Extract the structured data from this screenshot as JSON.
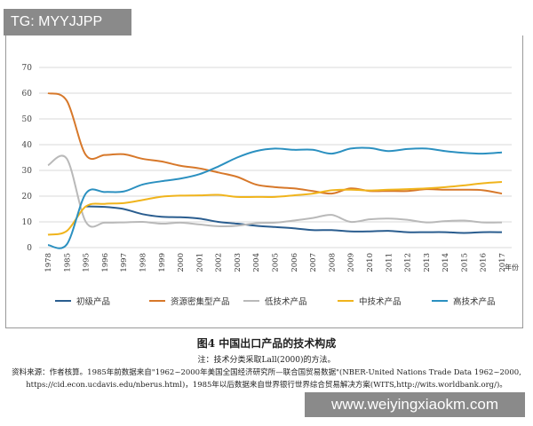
{
  "watermark_top": "TG: MYYJJPP",
  "watermark_bottom": "www.weiyingxiaokm.com",
  "caption": {
    "title": "图4  中国出口产品的技术构成",
    "note": "注：技术分类采取Lall(2000)的方法。",
    "source_line1": "资料来源：作者核算。1985年前数据来自\"1962~2000年美国全国经济研究所—联合国贸易数据\"(NBER-United Nations Trade Data 1962~2000,",
    "source_line2": "https://cid.econ.ucdavis.edu/nberus.html)，1985年以后数据来自世界银行世界综合贸易解决方案(WITS,http://wits.worldbank.org/)。"
  },
  "chart_data": {
    "type": "line",
    "title": "",
    "xlabel": "年份",
    "ylabel": "",
    "ylim": [
      0,
      70
    ],
    "yticks": [
      0,
      10,
      20,
      30,
      40,
      50,
      60,
      70
    ],
    "grid": true,
    "legend": "bottom",
    "categories": [
      "1978",
      "1985",
      "1995",
      "1996",
      "1997",
      "1998",
      "1999",
      "2000",
      "2001",
      "2002",
      "2003",
      "2004",
      "2005",
      "2006",
      "2007",
      "2008",
      "2009",
      "2010",
      "2011",
      "2012",
      "2013",
      "2014",
      "2015",
      "2016",
      "2017"
    ],
    "series": [
      {
        "name": "初级产品",
        "color": "#2a5d8f",
        "values": [
          null,
          null,
          16,
          15.8,
          15,
          13,
          12,
          11.8,
          11.3,
          10,
          9.3,
          8.5,
          8,
          7.5,
          6.8,
          6.8,
          6.3,
          6.3,
          6.5,
          6,
          6,
          6,
          5.7,
          6,
          6
        ]
      },
      {
        "name": "资源密集型产品",
        "color": "#d7782a",
        "values": [
          60,
          57,
          36,
          36,
          36.3,
          34.5,
          33.5,
          31.8,
          30.8,
          29.2,
          27.5,
          24.5,
          23.5,
          23,
          22,
          21,
          23,
          22,
          22,
          22,
          22.7,
          22.5,
          22.5,
          22.3,
          21
        ]
      },
      {
        "name": "低技术产品",
        "color": "#b9b9b9",
        "values": [
          32,
          34.5,
          10,
          9.7,
          9.8,
          10,
          9.3,
          9.7,
          9,
          8.3,
          8.5,
          9.5,
          9.7,
          10.5,
          11.5,
          12.7,
          10,
          11,
          11.3,
          10.8,
          9.8,
          10.3,
          10.5,
          9.8,
          9.8
        ]
      },
      {
        "name": "中技术产品",
        "color": "#f0b41c",
        "values": [
          5,
          6.5,
          16,
          17,
          17.3,
          18.5,
          19.8,
          20.2,
          20.3,
          20.5,
          19.7,
          19.7,
          19.7,
          20.3,
          21,
          22.3,
          22.5,
          22.2,
          22.5,
          22.7,
          23,
          23.5,
          24.2,
          25,
          25.5
        ]
      },
      {
        "name": "高技术产品",
        "color": "#2b90c0",
        "values": [
          1,
          1.3,
          21,
          21.6,
          21.8,
          24.5,
          25.8,
          26.8,
          28.5,
          31.5,
          35,
          37.5,
          38.5,
          38,
          38,
          36.5,
          38.5,
          38.7,
          37.5,
          38.3,
          38.5,
          37.5,
          36.8,
          36.5,
          37
        ]
      }
    ]
  }
}
